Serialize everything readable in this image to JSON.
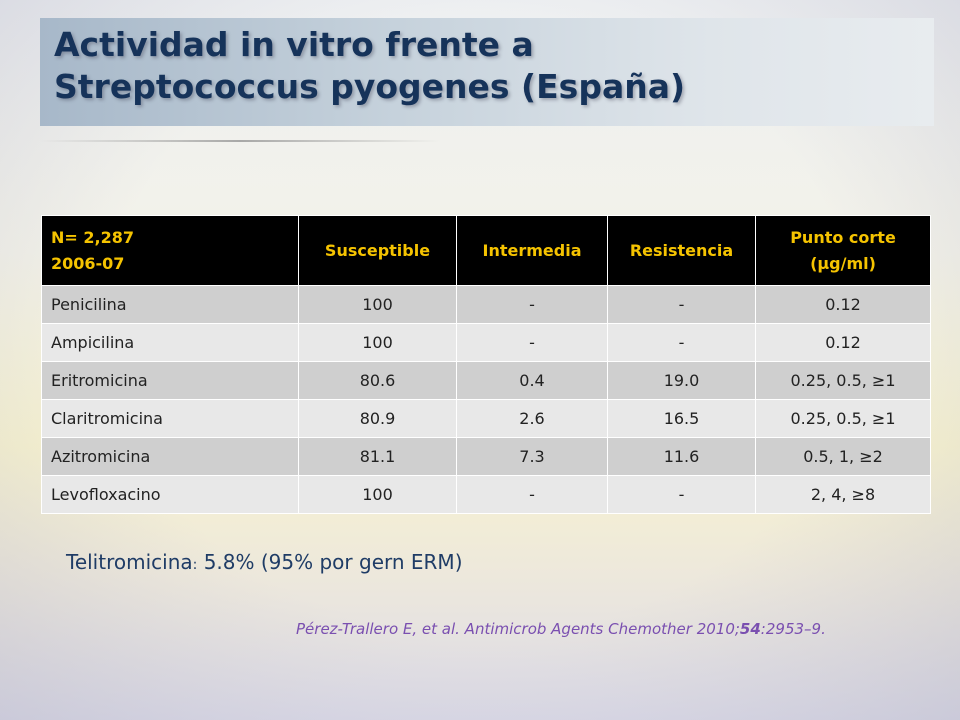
{
  "title": {
    "line1": "Actividad in vitro frente a",
    "line2": "Streptococcus pyogenes (España)"
  },
  "table": {
    "header": {
      "col0_line1": "N= 2,287",
      "col0_line2": "2006-07",
      "col1": "Susceptible",
      "col2": "Intermedia",
      "col3": "Resistencia",
      "col4_line1": "Punto corte",
      "col4_line2": "(µg/ml)"
    },
    "rows": [
      [
        "Penicilina",
        "100",
        "-",
        "-",
        "0.12"
      ],
      [
        "Ampicilina",
        "100",
        "-",
        "-",
        "0.12"
      ],
      [
        "Eritromicina",
        "80.6",
        "0.4",
        "19.0",
        "0.25, 0.5, ≥1"
      ],
      [
        "Claritromicina",
        "80.9",
        "2.6",
        "16.5",
        "0.25, 0.5, ≥1"
      ],
      [
        "Azitromicina",
        "81.1",
        "7.3",
        "11.6",
        "0.5, 1, ≥2"
      ],
      [
        "Levofloxacino",
        "100",
        "-",
        "-",
        "2, 4, ≥8"
      ]
    ]
  },
  "note": {
    "label": "Telitromicina",
    "colon": ":",
    "text": " 5.8% (95% por gern ERM)"
  },
  "citation": {
    "prefix": "Pérez-Trallero E, et al. Antimicrob Agents Chemother 2010;",
    "volume": "54",
    "suffix": ":2953–9."
  }
}
